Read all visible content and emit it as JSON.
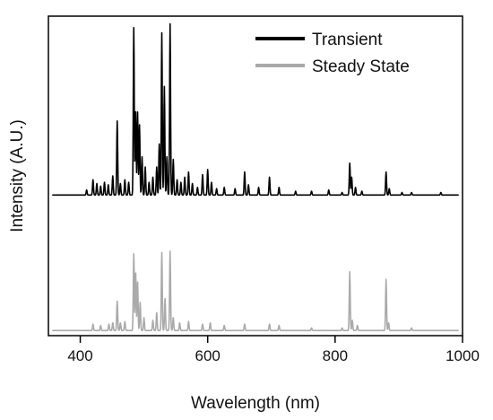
{
  "chart_data": {
    "type": "line",
    "title": "",
    "xlabel": "Wavelength (nm)",
    "ylabel": "Intensity (A.U.)",
    "xlim": [
      350,
      1000
    ],
    "ylim": [
      0,
      2.5
    ],
    "xticks": [
      400,
      600,
      800,
      1000
    ],
    "yticks": [],
    "grid": false,
    "legend": {
      "position": "top-right"
    },
    "series": [
      {
        "name": "Transient",
        "color": "#000000",
        "baseline": 1.1,
        "peaks": [
          [
            410,
            0.04
          ],
          [
            420,
            0.12
          ],
          [
            426,
            0.09
          ],
          [
            432,
            0.07
          ],
          [
            438,
            0.1
          ],
          [
            444,
            0.08
          ],
          [
            451,
            0.15
          ],
          [
            458,
            0.58
          ],
          [
            463,
            0.09
          ],
          [
            470,
            0.12
          ],
          [
            476,
            0.1
          ],
          [
            484,
            1.31
          ],
          [
            487,
            0.65
          ],
          [
            490,
            0.65
          ],
          [
            493,
            0.55
          ],
          [
            497,
            0.3
          ],
          [
            502,
            0.22
          ],
          [
            508,
            0.1
          ],
          [
            514,
            0.14
          ],
          [
            520,
            0.22
          ],
          [
            524,
            0.4
          ],
          [
            528,
            1.27
          ],
          [
            532,
            0.85
          ],
          [
            536,
            0.3
          ],
          [
            541,
            1.34
          ],
          [
            546,
            0.28
          ],
          [
            552,
            0.12
          ],
          [
            558,
            0.1
          ],
          [
            564,
            0.14
          ],
          [
            570,
            0.18
          ],
          [
            576,
            0.09
          ],
          [
            584,
            0.06
          ],
          [
            592,
            0.16
          ],
          [
            600,
            0.2
          ],
          [
            606,
            0.1
          ],
          [
            614,
            0.05
          ],
          [
            626,
            0.06
          ],
          [
            643,
            0.05
          ],
          [
            658,
            0.18
          ],
          [
            664,
            0.08
          ],
          [
            680,
            0.06
          ],
          [
            697,
            0.14
          ],
          [
            712,
            0.06
          ],
          [
            738,
            0.03
          ],
          [
            763,
            0.03
          ],
          [
            790,
            0.04
          ],
          [
            811,
            0.02
          ],
          [
            823,
            0.25
          ],
          [
            826,
            0.14
          ],
          [
            832,
            0.06
          ],
          [
            842,
            0.03
          ],
          [
            880,
            0.18
          ],
          [
            885,
            0.05
          ],
          [
            905,
            0.02
          ],
          [
            920,
            0.02
          ],
          [
            966,
            0.02
          ]
        ]
      },
      {
        "name": "Steady State",
        "color": "#aaaaaa",
        "baseline": 0.04,
        "peaks": [
          [
            420,
            0.05
          ],
          [
            432,
            0.04
          ],
          [
            445,
            0.05
          ],
          [
            451,
            0.06
          ],
          [
            458,
            0.23
          ],
          [
            463,
            0.06
          ],
          [
            470,
            0.07
          ],
          [
            484,
            0.6
          ],
          [
            487,
            0.45
          ],
          [
            490,
            0.38
          ],
          [
            494,
            0.22
          ],
          [
            500,
            0.1
          ],
          [
            514,
            0.08
          ],
          [
            520,
            0.14
          ],
          [
            528,
            0.61
          ],
          [
            533,
            0.25
          ],
          [
            541,
            0.62
          ],
          [
            546,
            0.1
          ],
          [
            556,
            0.06
          ],
          [
            570,
            0.07
          ],
          [
            592,
            0.05
          ],
          [
            604,
            0.06
          ],
          [
            626,
            0.04
          ],
          [
            658,
            0.05
          ],
          [
            697,
            0.05
          ],
          [
            712,
            0.04
          ],
          [
            763,
            0.02
          ],
          [
            811,
            0.02
          ],
          [
            823,
            0.46
          ],
          [
            827,
            0.08
          ],
          [
            835,
            0.04
          ],
          [
            880,
            0.4
          ],
          [
            884,
            0.06
          ],
          [
            920,
            0.02
          ]
        ]
      }
    ]
  }
}
